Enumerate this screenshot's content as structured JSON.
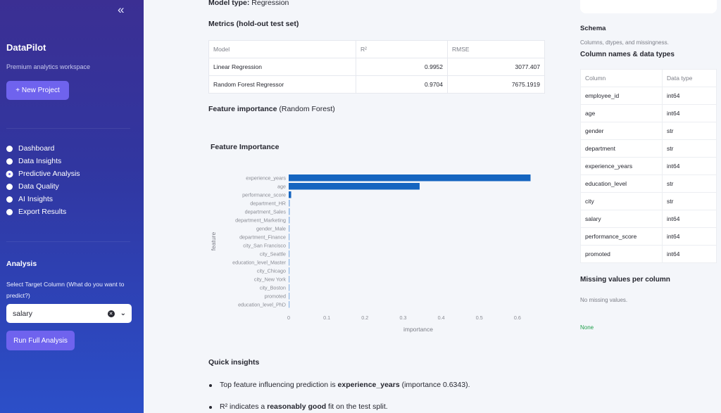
{
  "sidebar": {
    "collapse_icon": "«",
    "brand": "DataPilot",
    "tagline": "Premium analytics workspace",
    "new_project_label": "+ New Project",
    "nav": [
      {
        "label": "Dashboard",
        "active": false
      },
      {
        "label": "Data Insights",
        "active": false
      },
      {
        "label": "Predictive Analysis",
        "active": true
      },
      {
        "label": "Data Quality",
        "active": false
      },
      {
        "label": "AI Insights",
        "active": false
      },
      {
        "label": "Export Results",
        "active": false
      }
    ],
    "analysis_heading": "Analysis",
    "target_label": "Select Target Column (What do you want to predict?)",
    "target_value": "salary",
    "run_label": "Run Full Analysis"
  },
  "main": {
    "model_type_label": "Model type:",
    "model_type_value": "Regression",
    "metrics_heading": "Metrics (hold-out test set)",
    "metrics_table": {
      "headers": [
        "Model",
        "R²",
        "RMSE"
      ],
      "rows": [
        [
          "Linear Regression",
          "0.9952",
          "3077.407"
        ],
        [
          "Random Forest Regressor",
          "0.9704",
          "7675.1919"
        ]
      ]
    },
    "feature_importance_heading": "Feature importance",
    "feature_importance_sub": "(Random Forest)",
    "quick_insights_heading": "Quick insights",
    "insights": [
      {
        "pre": "Top feature influencing prediction is ",
        "bold": "experience_years",
        "post": " (importance 0.6343)."
      },
      {
        "pre": "R² indicates a ",
        "bold": "reasonably good",
        "post": " fit on the test split."
      }
    ]
  },
  "chart_data": {
    "type": "bar",
    "orientation": "horizontal",
    "title": "Feature Importance",
    "xlabel": "importance",
    "ylabel": "feature",
    "xlim": [
      0,
      0.65
    ],
    "xticks": [
      0,
      0.1,
      0.2,
      0.3,
      0.4,
      0.5,
      0.6
    ],
    "categories": [
      "experience_years",
      "age",
      "performance_score",
      "department_HR",
      "department_Sales",
      "department_Marketing",
      "gender_Male",
      "department_Finance",
      "city_San Francisco",
      "city_Seattle",
      "education_level_Master",
      "city_Chicago",
      "city_New York",
      "city_Boston",
      "promoted",
      "education_level_PhD"
    ],
    "values": [
      0.6343,
      0.3434,
      0.0065,
      0.003,
      0.0028,
      0.0026,
      0.0024,
      0.0022,
      0.002,
      0.0019,
      0.0018,
      0.0016,
      0.0015,
      0.0013,
      0.0011,
      0.0009
    ],
    "bar_color": "#1565c0",
    "bar_color_light": "#90b8e6"
  },
  "right": {
    "schema_heading": "Schema",
    "schema_sub": "Columns, dtypes, and missingness.",
    "column_names_heading": "Column names & data types",
    "schema_table": {
      "headers": [
        "Column",
        "Data type"
      ],
      "rows": [
        [
          "employee_id",
          "int64"
        ],
        [
          "age",
          "int64"
        ],
        [
          "gender",
          "str"
        ],
        [
          "department",
          "str"
        ],
        [
          "experience_years",
          "int64"
        ],
        [
          "education_level",
          "str"
        ],
        [
          "city",
          "str"
        ],
        [
          "salary",
          "int64"
        ],
        [
          "performance_score",
          "int64"
        ],
        [
          "promoted",
          "int64"
        ]
      ]
    },
    "missing_heading": "Missing values per column",
    "missing_sub": "No missing values.",
    "missing_badge": "None"
  },
  "colors": {
    "accent": "#6f63ee",
    "sidebar_top": "#3b2f93",
    "sidebar_bottom": "#2c4fc8",
    "success": "#1e9e4a"
  }
}
